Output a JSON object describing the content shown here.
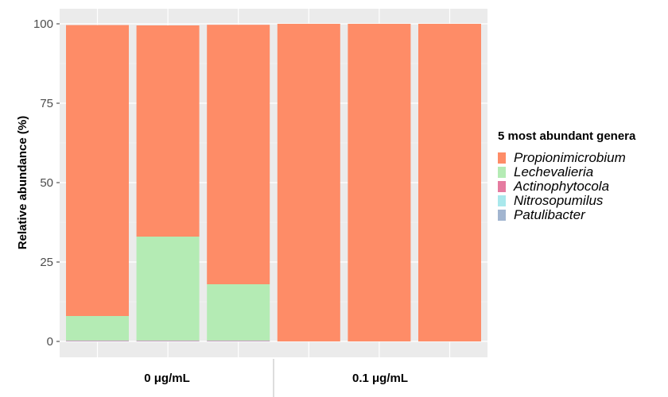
{
  "chart_data": {
    "type": "bar",
    "stacked": true,
    "ylabel": "Relative abundance (%)",
    "ylim": [
      0,
      100
    ],
    "yticks": [
      0,
      25,
      50,
      75,
      100
    ],
    "grid": true,
    "legend_placement": "right",
    "legend_title": "5 most abundant genera",
    "groups": [
      {
        "label": "0 μg/mL",
        "bars": 3
      },
      {
        "label": "0.1 μg/mL",
        "bars": 3
      }
    ],
    "series": [
      {
        "name": "Patulibacter",
        "color": "#a2b5d0",
        "values": [
          0.2,
          0.2,
          0.2,
          0,
          0,
          0
        ]
      },
      {
        "name": "Nitrosopumilus",
        "color": "#a9e8ec",
        "values": [
          0,
          0,
          0,
          0,
          0,
          0
        ]
      },
      {
        "name": "Actinophytocola",
        "color": "#e57ba0",
        "values": [
          0.1,
          0.1,
          0.1,
          0,
          0,
          0
        ]
      },
      {
        "name": "Lechevalieria",
        "color": "#b4ebb4",
        "values": [
          7.7,
          32.7,
          17.7,
          0,
          0,
          0
        ]
      },
      {
        "name": "Propionimicrobium",
        "color": "#fe8c67",
        "values": [
          91.6,
          66.5,
          81.7,
          100,
          100,
          100
        ]
      }
    ],
    "legend_order": [
      "Propionimicrobium",
      "Lechevalieria",
      "Actinophytocola",
      "Nitrosopumilus",
      "Patulibacter"
    ]
  }
}
